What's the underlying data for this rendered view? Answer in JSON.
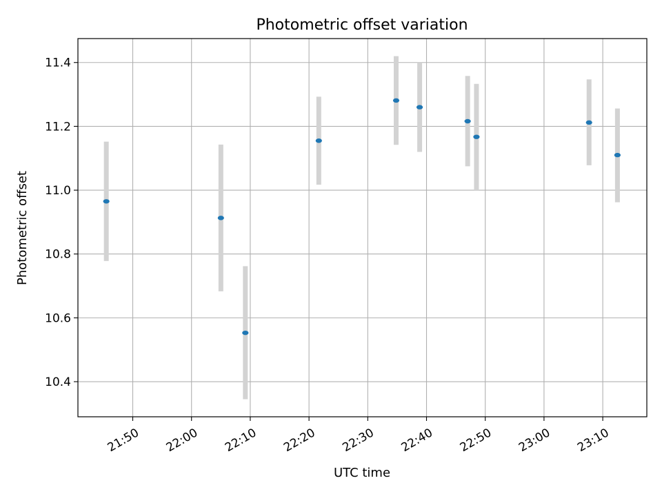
{
  "chart_data": {
    "type": "scatter",
    "title": "Photometric offset variation",
    "xlabel": "UTC time",
    "ylabel": "Photometric offset",
    "x_ticks": [
      "21:50",
      "22:00",
      "22:10",
      "22:20",
      "22:30",
      "22:40",
      "22:50",
      "23:00",
      "23:10"
    ],
    "y_ticks": [
      "10.4",
      "10.6",
      "10.8",
      "11.0",
      "11.2",
      "11.4"
    ],
    "xlim": [
      "21:40:40",
      "23:17:30"
    ],
    "ylim": [
      10.29,
      11.475
    ],
    "grid": true,
    "series": [
      {
        "points": [
          {
            "x": "21:45:30",
            "y": 10.965,
            "err_low": 10.778,
            "err_high": 11.152
          },
          {
            "x": "22:05:00",
            "y": 10.913,
            "err_low": 10.683,
            "err_high": 11.143
          },
          {
            "x": "22:09:10",
            "y": 10.553,
            "err_low": 10.345,
            "err_high": 10.762
          },
          {
            "x": "22:21:40",
            "y": 11.155,
            "err_low": 11.017,
            "err_high": 11.293
          },
          {
            "x": "22:34:50",
            "y": 11.281,
            "err_low": 11.142,
            "err_high": 11.42
          },
          {
            "x": "22:38:50",
            "y": 11.26,
            "err_low": 11.12,
            "err_high": 11.4
          },
          {
            "x": "22:47:00",
            "y": 11.216,
            "err_low": 11.075,
            "err_high": 11.358
          },
          {
            "x": "22:48:30",
            "y": 11.167,
            "err_low": 11.0,
            "err_high": 11.333
          },
          {
            "x": "23:07:40",
            "y": 11.212,
            "err_low": 11.078,
            "err_high": 11.347
          },
          {
            "x": "23:12:30",
            "y": 11.11,
            "err_low": 10.962,
            "err_high": 11.256
          }
        ]
      }
    ],
    "colors": {
      "point": "#1f77b4",
      "errorbar": "#d3d3d3",
      "grid": "#b0b0b0"
    }
  }
}
